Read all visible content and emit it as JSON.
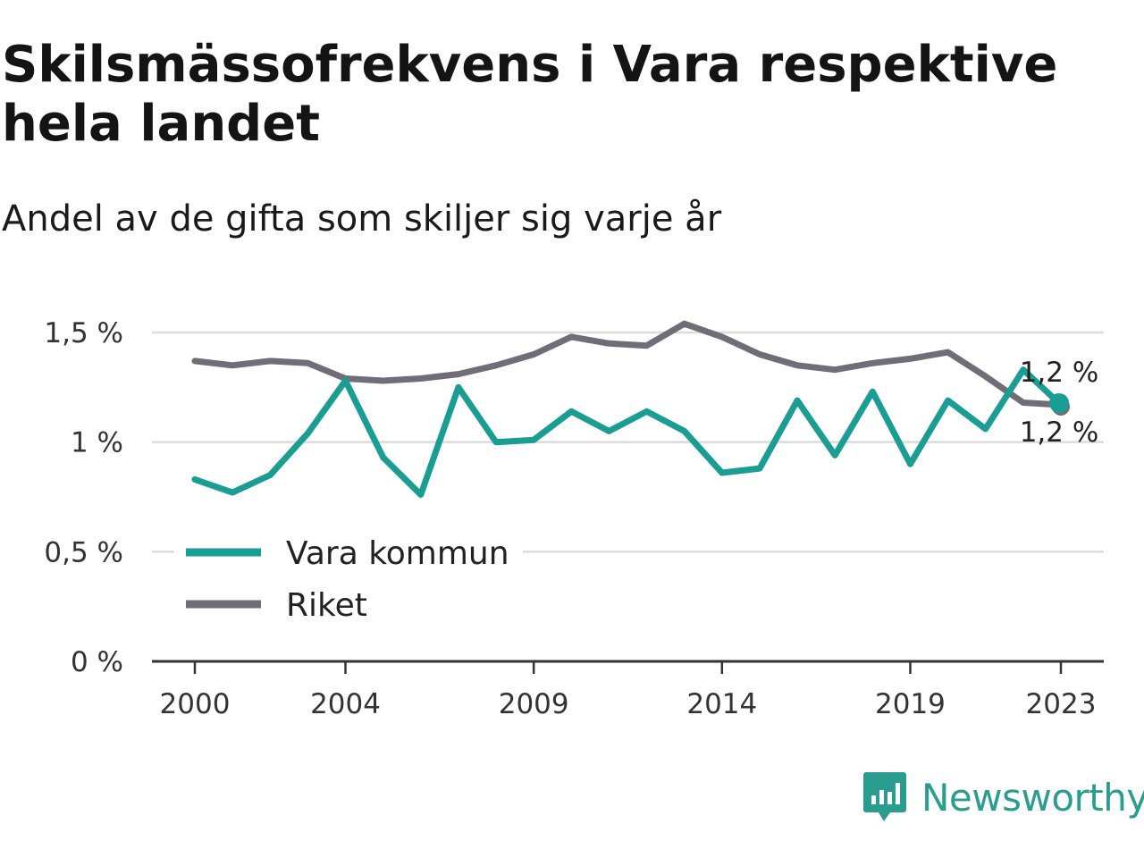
{
  "title": "Skilsmässofrekvens i Vara respektive hela landet",
  "subtitle": "Andel av de gifta som skiljer sig varje år",
  "brand": {
    "name": "Newsworthy",
    "icon": "newsworthy-logo-icon",
    "color": "#2a9d8f"
  },
  "chart_data": {
    "type": "line",
    "x": [
      2000,
      2001,
      2002,
      2003,
      2004,
      2005,
      2006,
      2007,
      2008,
      2009,
      2010,
      2011,
      2012,
      2013,
      2014,
      2015,
      2016,
      2017,
      2018,
      2019,
      2020,
      2021,
      2022,
      2023
    ],
    "x_ticks": [
      2000,
      2004,
      2009,
      2014,
      2019,
      2023
    ],
    "x_tick_labels": [
      "2000",
      "2004",
      "2009",
      "2014",
      "2019",
      "2023"
    ],
    "y_ticks": [
      0,
      0.5,
      1,
      1.5
    ],
    "y_tick_labels": [
      "0 %",
      "0,5 %",
      "1 %",
      "1,5 %"
    ],
    "ylim": [
      0,
      1.5
    ],
    "grid": true,
    "legend_position": "bottom-left",
    "series": [
      {
        "name": "Vara kommun",
        "color": "#1a9e93",
        "values": [
          0.83,
          0.77,
          0.85,
          1.04,
          1.28,
          0.93,
          0.76,
          1.25,
          1.0,
          1.01,
          1.14,
          1.05,
          1.14,
          1.05,
          0.86,
          0.88,
          1.19,
          0.94,
          1.23,
          0.9,
          1.19,
          1.06,
          1.33,
          1.17
        ],
        "end_label": "1,2 %"
      },
      {
        "name": "Riket",
        "color": "#6f6e76",
        "values": [
          1.37,
          1.35,
          1.37,
          1.36,
          1.29,
          1.28,
          1.29,
          1.31,
          1.35,
          1.4,
          1.48,
          1.45,
          1.44,
          1.54,
          1.48,
          1.4,
          1.35,
          1.33,
          1.36,
          1.38,
          1.41,
          1.3,
          1.18,
          1.17
        ],
        "end_label": "1,2 %"
      }
    ]
  }
}
